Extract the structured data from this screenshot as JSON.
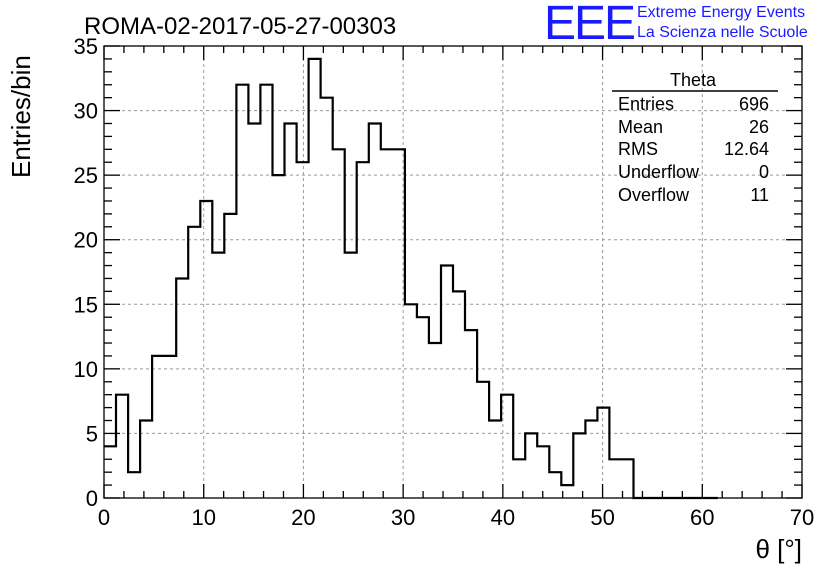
{
  "header": {
    "run_title": "ROMA-02-2017-05-27-00303"
  },
  "logo": {
    "mark": "EEE",
    "line1": "Extreme Energy Events",
    "line2": "La Scienza nelle Scuole",
    "color": "#1a1aff"
  },
  "stats": {
    "title": "Theta",
    "rows": [
      {
        "label": "Entries",
        "value": "696"
      },
      {
        "label": "Mean",
        "value": "26"
      },
      {
        "label": "RMS",
        "value": "12.64"
      },
      {
        "label": "Underflow",
        "value": "0"
      },
      {
        "label": "Overflow",
        "value": "11"
      }
    ]
  },
  "chart_data": {
    "type": "histogram",
    "title": "ROMA-02-2017-05-27-00303",
    "xlabel": "θ [°]",
    "ylabel": "Entries/bin",
    "xlim": [
      0,
      70
    ],
    "ylim": [
      0,
      35
    ],
    "xticks": [
      0,
      10,
      20,
      30,
      40,
      50,
      60,
      70
    ],
    "yticks": [
      0,
      5,
      10,
      15,
      20,
      25,
      30,
      35
    ],
    "grid": true,
    "bin_edges": [
      0,
      1.2069,
      2.4138,
      3.6207,
      4.8276,
      6.0345,
      7.2414,
      8.4483,
      9.6552,
      10.8621,
      12.069,
      13.2759,
      14.4828,
      15.6897,
      16.8966,
      18.1034,
      19.3103,
      20.5172,
      21.7241,
      22.931,
      24.1379,
      25.3448,
      26.5517,
      27.7586,
      28.9655,
      30.1724,
      31.3793,
      32.5862,
      33.7931,
      35,
      36.2069,
      37.4138,
      38.6207,
      39.8276,
      41.0345,
      42.2414,
      43.4483,
      44.6552,
      45.8621,
      47.069,
      48.2759,
      49.4828,
      50.6897,
      51.8966,
      53.1034,
      54.3103,
      55.5172,
      56.7241,
      57.931,
      59.1379,
      60.3448,
      61.5517
    ],
    "values": [
      4,
      8,
      2,
      6,
      11,
      11,
      17,
      21,
      23,
      19,
      22,
      32,
      29,
      32,
      25,
      29,
      26,
      34,
      31,
      27,
      19,
      26,
      29,
      27,
      27,
      15,
      14,
      12,
      18,
      16,
      13,
      9,
      6,
      8,
      3,
      5,
      4,
      2,
      1,
      5,
      6,
      7,
      3,
      3,
      0,
      0,
      0,
      0,
      0,
      0,
      0
    ],
    "color": "#000000"
  }
}
